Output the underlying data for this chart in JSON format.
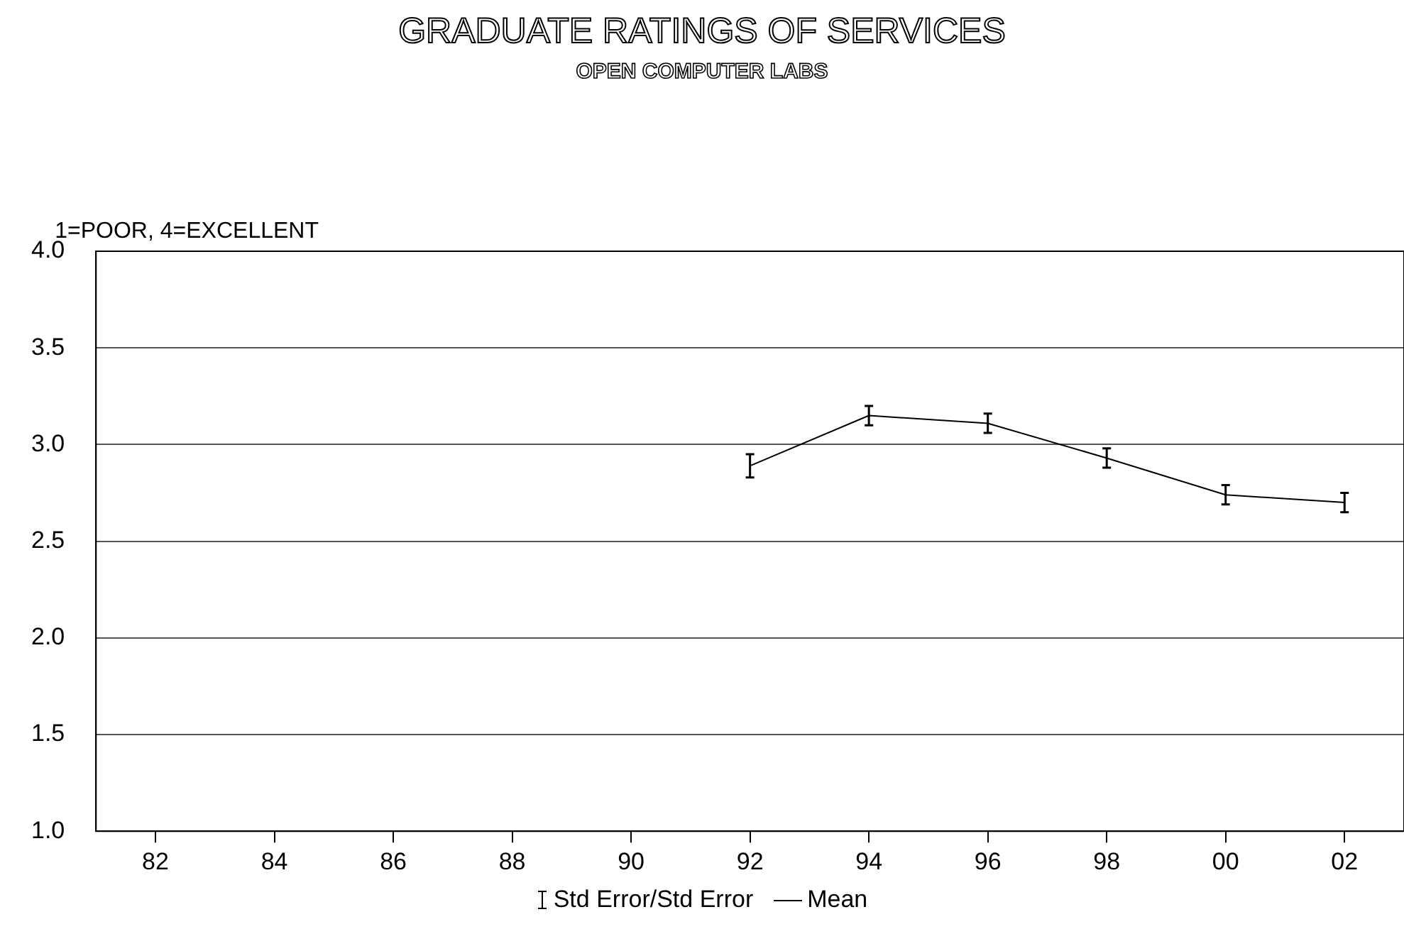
{
  "chart_data": {
    "type": "line",
    "title": "GRADUATE RATINGS OF SERVICES",
    "subtitle": "OPEN COMPUTER LABS",
    "ylabel": "1=POOR, 4=EXCELLENT",
    "categories": [
      "82",
      "84",
      "86",
      "88",
      "90",
      "92",
      "94",
      "96",
      "98",
      "00",
      "02"
    ],
    "series": [
      {
        "name": "Mean",
        "color": "#000000",
        "values": [
          null,
          null,
          null,
          null,
          null,
          2.89,
          3.15,
          3.11,
          2.93,
          2.74,
          2.7
        ],
        "errors": [
          null,
          null,
          null,
          null,
          null,
          0.06,
          0.05,
          0.05,
          0.05,
          0.05,
          0.05
        ]
      }
    ],
    "annotations": [
      "Std Error/Std Error"
    ],
    "ylim": [
      1,
      4
    ],
    "yticks": [
      {
        "value": 1,
        "label": "1.0"
      },
      {
        "value": 1.5,
        "label": "1.5"
      },
      {
        "value": 2,
        "label": "2.0"
      },
      {
        "value": 2.5,
        "label": "2.5"
      },
      {
        "value": 3,
        "label": "3.0"
      },
      {
        "value": 3.5,
        "label": "3.5"
      },
      {
        "value": 4,
        "label": "4.0"
      }
    ],
    "grid": "y",
    "legend": "bottom",
    "marker": "none",
    "line_style": "solid"
  }
}
